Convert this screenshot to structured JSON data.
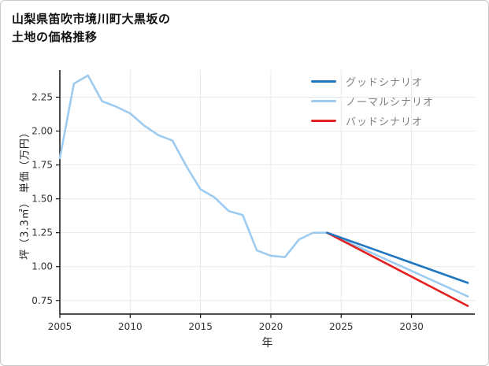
{
  "page": {
    "title": "山梨県笛吹市境川町大黒坂の\n土地の価格推移"
  },
  "chart_data": {
    "type": "line",
    "title": "山梨県笛吹市境川町大黒坂の土地の価格推移",
    "xlabel": "年",
    "ylabel": "坪（3.3㎡） 単価（万円）",
    "xlim": [
      2005,
      2034.5
    ],
    "ylim": [
      0.65,
      2.45
    ],
    "x_ticks": [
      2005,
      2010,
      2015,
      2020,
      2025,
      2030
    ],
    "y_ticks": [
      0.75,
      1.0,
      1.25,
      1.5,
      1.75,
      2.0,
      2.25
    ],
    "grid": true,
    "legend_position": "top-right",
    "background": "#ffffff",
    "grid_color": "#e8e8e8",
    "axis_color": "#111111",
    "series": [
      {
        "name": "グッドシナリオ",
        "color": "#1f77c0",
        "x": [
          2024,
          2034
        ],
        "values": [
          1.25,
          0.88
        ]
      },
      {
        "name": "ノーマルシナリオ",
        "color": "#9ecbf0",
        "x": [
          2005,
          2006,
          2007,
          2008,
          2009,
          2010,
          2011,
          2012,
          2013,
          2014,
          2015,
          2016,
          2017,
          2018,
          2019,
          2020,
          2021,
          2022,
          2023,
          2024,
          2034
        ],
        "values": [
          1.8,
          2.35,
          2.41,
          2.22,
          2.18,
          2.13,
          2.04,
          1.97,
          1.93,
          1.74,
          1.57,
          1.51,
          1.41,
          1.38,
          1.12,
          1.08,
          1.07,
          1.2,
          1.25,
          1.25,
          0.78
        ]
      },
      {
        "name": "バッドシナリオ",
        "color": "#e32222",
        "x": [
          2024,
          2034
        ],
        "values": [
          1.25,
          0.71
        ]
      }
    ]
  }
}
